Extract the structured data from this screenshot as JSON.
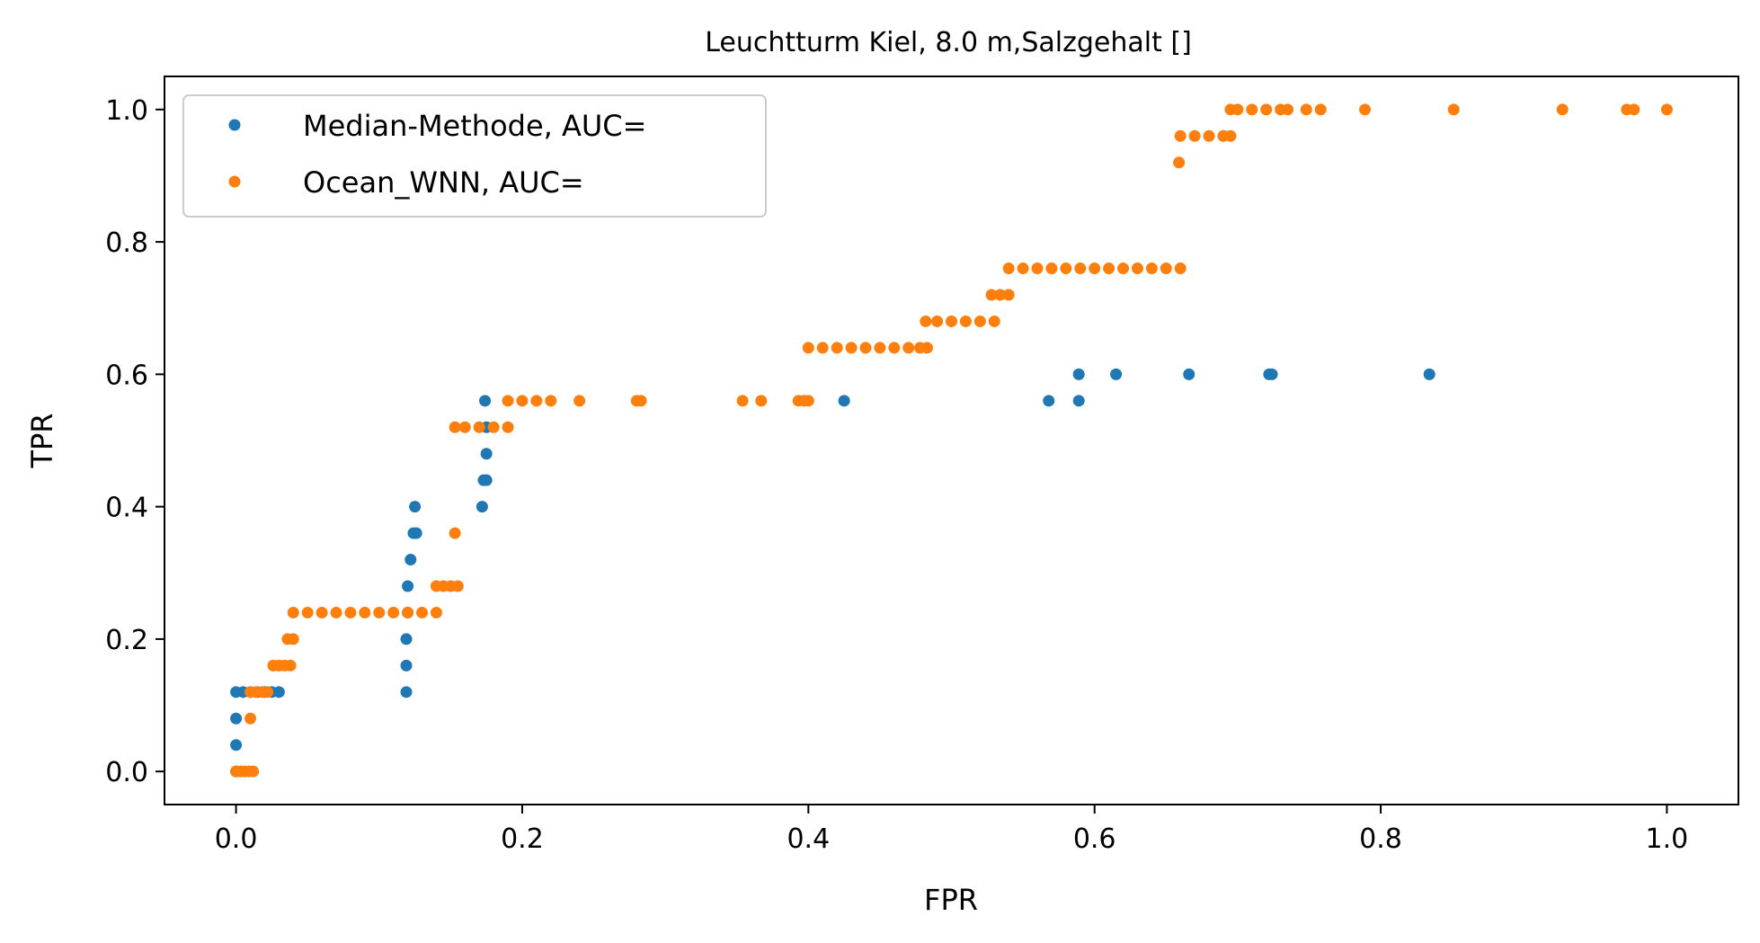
{
  "chart_data": {
    "type": "scatter",
    "title": "Leuchtturm Kiel, 8.0 m,Salzgehalt []",
    "xlabel": "FPR",
    "ylabel": "TPR",
    "xlim": [
      -0.05,
      1.05
    ],
    "ylim": [
      -0.05,
      1.05
    ],
    "xticks": [
      0.0,
      0.2,
      0.4,
      0.6,
      0.8,
      1.0
    ],
    "yticks": [
      0.0,
      0.2,
      0.4,
      0.6,
      0.8,
      1.0
    ],
    "xtick_labels": [
      "0.0",
      "0.2",
      "0.4",
      "0.6",
      "0.8",
      "1.0"
    ],
    "ytick_labels": [
      "0.0",
      "0.2",
      "0.4",
      "0.6",
      "0.8",
      "1.0"
    ],
    "grid": false,
    "legend_position": "top-left",
    "series": [
      {
        "name": "Median-Methode, AUC=",
        "color": "#1f77b4",
        "points": [
          [
            0.0,
            0.0
          ],
          [
            0.0,
            0.04
          ],
          [
            0.0,
            0.08
          ],
          [
            0.0,
            0.12
          ],
          [
            0.005,
            0.12
          ],
          [
            0.01,
            0.12
          ],
          [
            0.015,
            0.12
          ],
          [
            0.02,
            0.12
          ],
          [
            0.025,
            0.12
          ],
          [
            0.03,
            0.12
          ],
          [
            0.119,
            0.12
          ],
          [
            0.119,
            0.16
          ],
          [
            0.119,
            0.2
          ],
          [
            0.12,
            0.24
          ],
          [
            0.12,
            0.28
          ],
          [
            0.122,
            0.32
          ],
          [
            0.124,
            0.36
          ],
          [
            0.126,
            0.36
          ],
          [
            0.125,
            0.4
          ],
          [
            0.172,
            0.4
          ],
          [
            0.173,
            0.44
          ],
          [
            0.175,
            0.44
          ],
          [
            0.175,
            0.48
          ],
          [
            0.175,
            0.52
          ],
          [
            0.174,
            0.56
          ],
          [
            0.425,
            0.56
          ],
          [
            0.568,
            0.56
          ],
          [
            0.589,
            0.56
          ],
          [
            0.589,
            0.6
          ],
          [
            0.615,
            0.6
          ],
          [
            0.666,
            0.6
          ],
          [
            0.722,
            0.6
          ],
          [
            0.724,
            0.6
          ],
          [
            0.834,
            0.6
          ]
        ]
      },
      {
        "name": "Ocean_WNN, AUC=",
        "color": "#ff7f0e",
        "points": [
          [
            0.0,
            0.0
          ],
          [
            0.003,
            0.0
          ],
          [
            0.006,
            0.0
          ],
          [
            0.009,
            0.0
          ],
          [
            0.012,
            0.0
          ],
          [
            0.01,
            0.08
          ],
          [
            0.01,
            0.12
          ],
          [
            0.014,
            0.12
          ],
          [
            0.018,
            0.12
          ],
          [
            0.022,
            0.12
          ],
          [
            0.026,
            0.16
          ],
          [
            0.03,
            0.16
          ],
          [
            0.034,
            0.16
          ],
          [
            0.038,
            0.16
          ],
          [
            0.036,
            0.2
          ],
          [
            0.04,
            0.2
          ],
          [
            0.04,
            0.24
          ],
          [
            0.05,
            0.24
          ],
          [
            0.06,
            0.24
          ],
          [
            0.07,
            0.24
          ],
          [
            0.08,
            0.24
          ],
          [
            0.09,
            0.24
          ],
          [
            0.1,
            0.24
          ],
          [
            0.11,
            0.24
          ],
          [
            0.12,
            0.24
          ],
          [
            0.13,
            0.24
          ],
          [
            0.14,
            0.24
          ],
          [
            0.14,
            0.28
          ],
          [
            0.145,
            0.28
          ],
          [
            0.15,
            0.28
          ],
          [
            0.155,
            0.28
          ],
          [
            0.153,
            0.36
          ],
          [
            0.153,
            0.52
          ],
          [
            0.16,
            0.52
          ],
          [
            0.17,
            0.52
          ],
          [
            0.18,
            0.52
          ],
          [
            0.19,
            0.52
          ],
          [
            0.19,
            0.56
          ],
          [
            0.2,
            0.56
          ],
          [
            0.21,
            0.56
          ],
          [
            0.22,
            0.56
          ],
          [
            0.24,
            0.56
          ],
          [
            0.28,
            0.56
          ],
          [
            0.283,
            0.56
          ],
          [
            0.354,
            0.56
          ],
          [
            0.367,
            0.56
          ],
          [
            0.393,
            0.56
          ],
          [
            0.397,
            0.56
          ],
          [
            0.4,
            0.56
          ],
          [
            0.4,
            0.64
          ],
          [
            0.41,
            0.64
          ],
          [
            0.42,
            0.64
          ],
          [
            0.43,
            0.64
          ],
          [
            0.44,
            0.64
          ],
          [
            0.45,
            0.64
          ],
          [
            0.46,
            0.64
          ],
          [
            0.47,
            0.64
          ],
          [
            0.478,
            0.64
          ],
          [
            0.483,
            0.64
          ],
          [
            0.482,
            0.68
          ],
          [
            0.49,
            0.68
          ],
          [
            0.5,
            0.68
          ],
          [
            0.51,
            0.68
          ],
          [
            0.52,
            0.68
          ],
          [
            0.53,
            0.68
          ],
          [
            0.528,
            0.72
          ],
          [
            0.534,
            0.72
          ],
          [
            0.54,
            0.72
          ],
          [
            0.54,
            0.76
          ],
          [
            0.55,
            0.76
          ],
          [
            0.56,
            0.76
          ],
          [
            0.57,
            0.76
          ],
          [
            0.58,
            0.76
          ],
          [
            0.59,
            0.76
          ],
          [
            0.6,
            0.76
          ],
          [
            0.61,
            0.76
          ],
          [
            0.62,
            0.76
          ],
          [
            0.63,
            0.76
          ],
          [
            0.64,
            0.76
          ],
          [
            0.65,
            0.76
          ],
          [
            0.66,
            0.76
          ],
          [
            0.659,
            0.92
          ],
          [
            0.66,
            0.96
          ],
          [
            0.67,
            0.96
          ],
          [
            0.68,
            0.96
          ],
          [
            0.69,
            0.96
          ],
          [
            0.695,
            0.96
          ],
          [
            0.695,
            1.0
          ],
          [
            0.7,
            1.0
          ],
          [
            0.71,
            1.0
          ],
          [
            0.72,
            1.0
          ],
          [
            0.73,
            1.0
          ],
          [
            0.735,
            1.0
          ],
          [
            0.748,
            1.0
          ],
          [
            0.758,
            1.0
          ],
          [
            0.789,
            1.0
          ],
          [
            0.851,
            1.0
          ],
          [
            0.927,
            1.0
          ],
          [
            0.972,
            1.0
          ],
          [
            0.977,
            1.0
          ],
          [
            1.0,
            1.0
          ]
        ]
      }
    ]
  }
}
